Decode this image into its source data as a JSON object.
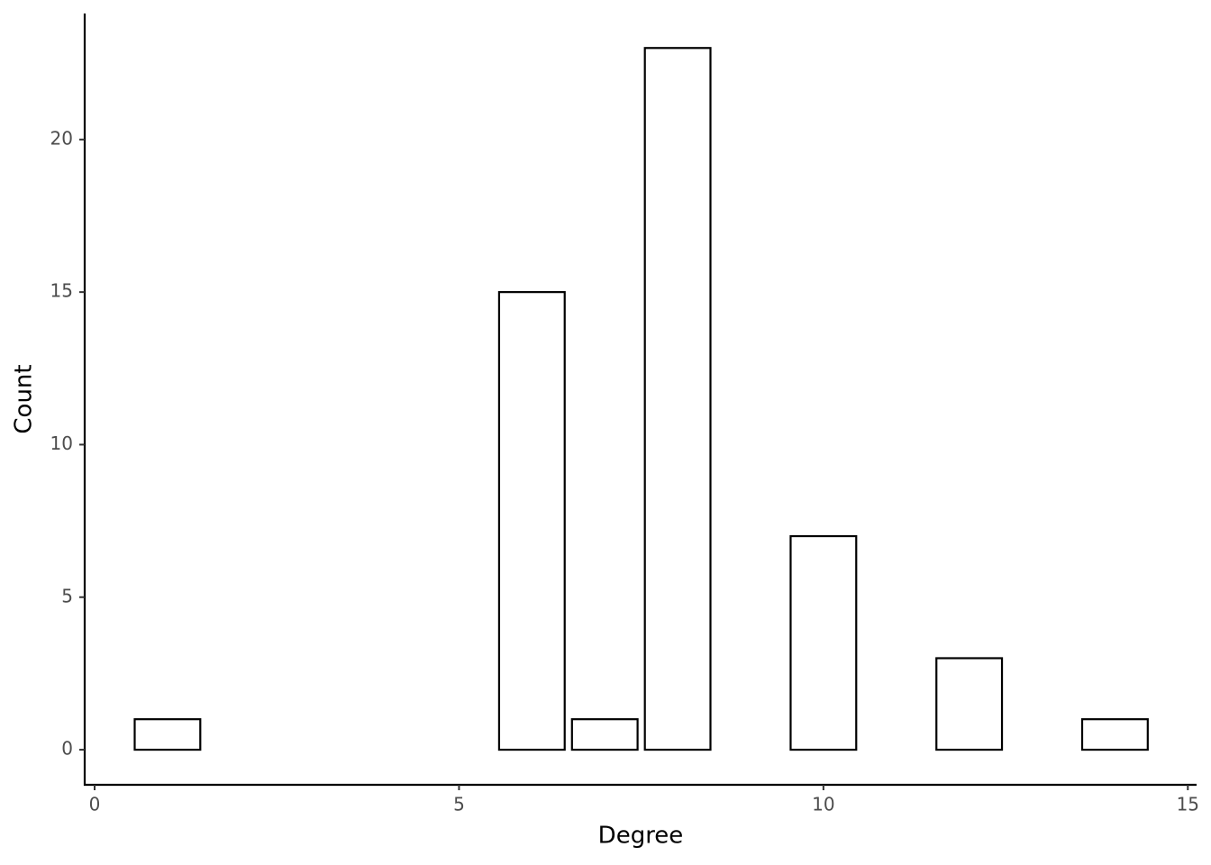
{
  "chart_data": {
    "type": "bar",
    "x_label": "Degree",
    "y_label": "Count",
    "x": [
      1,
      6,
      7,
      8,
      10,
      12,
      14
    ],
    "values": [
      1,
      15,
      1,
      23,
      7,
      3,
      1
    ],
    "color": "#ffffff",
    "edgecolor": "#000000",
    "xlim": [
      -0.136,
      15.12
    ],
    "xticks": [
      0,
      5,
      10,
      15
    ],
    "ylim": [
      -1.15,
      24.13
    ],
    "yticks": [
      0,
      5,
      10,
      15,
      20
    ],
    "grid": false
  }
}
